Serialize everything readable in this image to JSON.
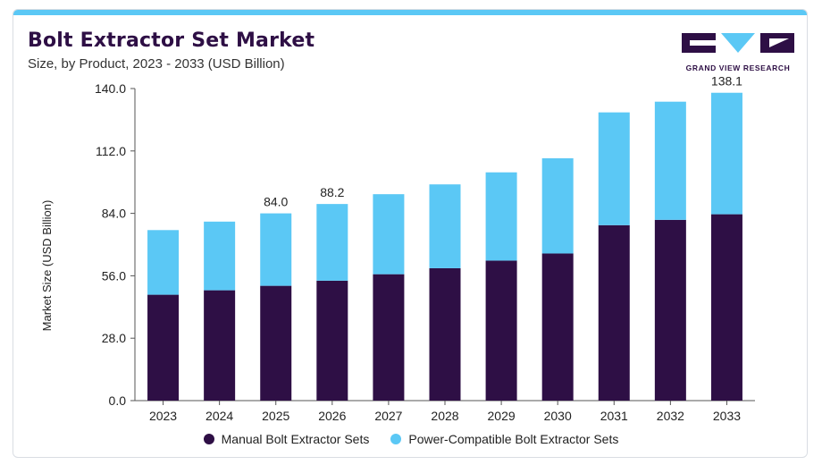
{
  "header": {
    "title": "Bolt Extractor Set Market",
    "subtitle": "Size, by Product, 2023 - 2033 (USD Billion)"
  },
  "logo": {
    "text": "GRAND VIEW RESEARCH",
    "colors": [
      "#2e0f45",
      "#5bc8f5"
    ]
  },
  "chart_data": {
    "type": "bar",
    "stacked": true,
    "categories": [
      "2023",
      "2024",
      "2025",
      "2026",
      "2027",
      "2028",
      "2029",
      "2030",
      "2031",
      "2032",
      "2033"
    ],
    "series": [
      {
        "name": "Manual Bolt Extractor Sets",
        "color": "#2e0f45",
        "values": [
          47.5,
          49.5,
          51.5,
          53.8,
          56.7,
          59.4,
          62.8,
          66.0,
          78.7,
          81.1,
          83.6
        ]
      },
      {
        "name": "Power-Compatible Bolt Extractor Sets",
        "color": "#5bc8f5",
        "values": [
          29.0,
          30.8,
          32.5,
          34.4,
          35.9,
          37.6,
          39.6,
          42.7,
          50.6,
          53.0,
          54.5
        ]
      }
    ],
    "totals_labeled": {
      "2025": "84.0",
      "2026": "88.2",
      "2033": "138.1"
    },
    "ylabel": "Market Size (USD Billion)",
    "ylim": [
      0,
      140
    ],
    "yticks": [
      "0.0",
      "28.0",
      "56.0",
      "84.0",
      "112.0",
      "140.0"
    ],
    "grid": false,
    "legend_position": "bottom"
  }
}
